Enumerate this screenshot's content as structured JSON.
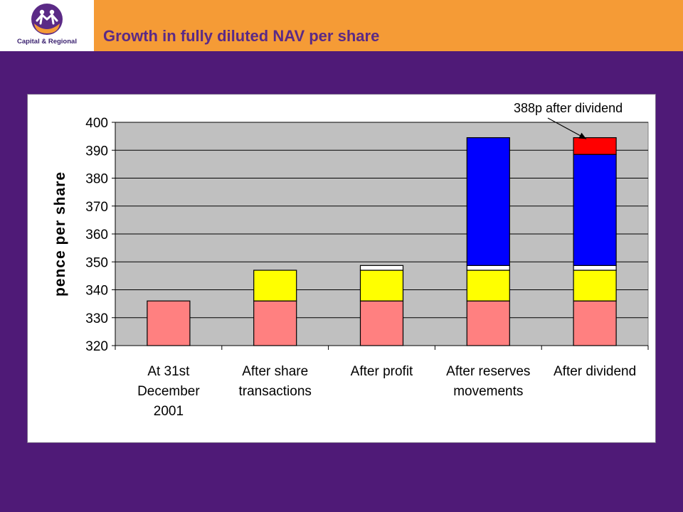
{
  "header": {
    "logo_text": "Capital & Regional",
    "title": "Growth in fully diluted NAV per share"
  },
  "colors": {
    "background": "#4f1a77",
    "header": "#f59b36",
    "title": "#5b2a86",
    "plot_area": "#c0c0c0",
    "base": "#ff8080",
    "share_transactions": "#ffff00",
    "profit": "#ffffff",
    "reserves": "#0000ff",
    "dividend": "#ff0000"
  },
  "chart_data": {
    "type": "bar",
    "stacked": true,
    "title": "",
    "ylabel": "pence per share",
    "ylim": [
      320,
      400
    ],
    "yticks": [
      320,
      330,
      340,
      350,
      360,
      370,
      380,
      390,
      400
    ],
    "grid": true,
    "categories": [
      [
        "At 31st",
        "December",
        "2001"
      ],
      [
        "After share",
        "transactions"
      ],
      [
        "After profit"
      ],
      [
        "After reserves",
        "movements"
      ],
      [
        "After dividend"
      ]
    ],
    "bars": [
      [
        {
          "from": 320,
          "to": 336,
          "color": "#ff8080"
        }
      ],
      [
        {
          "from": 320,
          "to": 336,
          "color": "#ff8080"
        },
        {
          "from": 336,
          "to": 347,
          "color": "#ffff00"
        }
      ],
      [
        {
          "from": 320,
          "to": 336,
          "color": "#ff8080"
        },
        {
          "from": 336,
          "to": 347,
          "color": "#ffff00"
        },
        {
          "from": 347,
          "to": 348.7,
          "color": "#ffffff"
        }
      ],
      [
        {
          "from": 320,
          "to": 336,
          "color": "#ff8080"
        },
        {
          "from": 336,
          "to": 347,
          "color": "#ffff00"
        },
        {
          "from": 347,
          "to": 348.7,
          "color": "#ffffff"
        },
        {
          "from": 348.7,
          "to": 394.5,
          "color": "#0000ff"
        }
      ],
      [
        {
          "from": 320,
          "to": 336,
          "color": "#ff8080"
        },
        {
          "from": 336,
          "to": 347,
          "color": "#ffff00"
        },
        {
          "from": 347,
          "to": 348.7,
          "color": "#ffffff"
        },
        {
          "from": 348.7,
          "to": 388.5,
          "color": "#0000ff"
        },
        {
          "from": 388.5,
          "to": 394.5,
          "color": "#ff0000"
        }
      ]
    ],
    "annotation": {
      "text": "388p after dividend",
      "target_category": 4,
      "target_value": 392
    }
  }
}
